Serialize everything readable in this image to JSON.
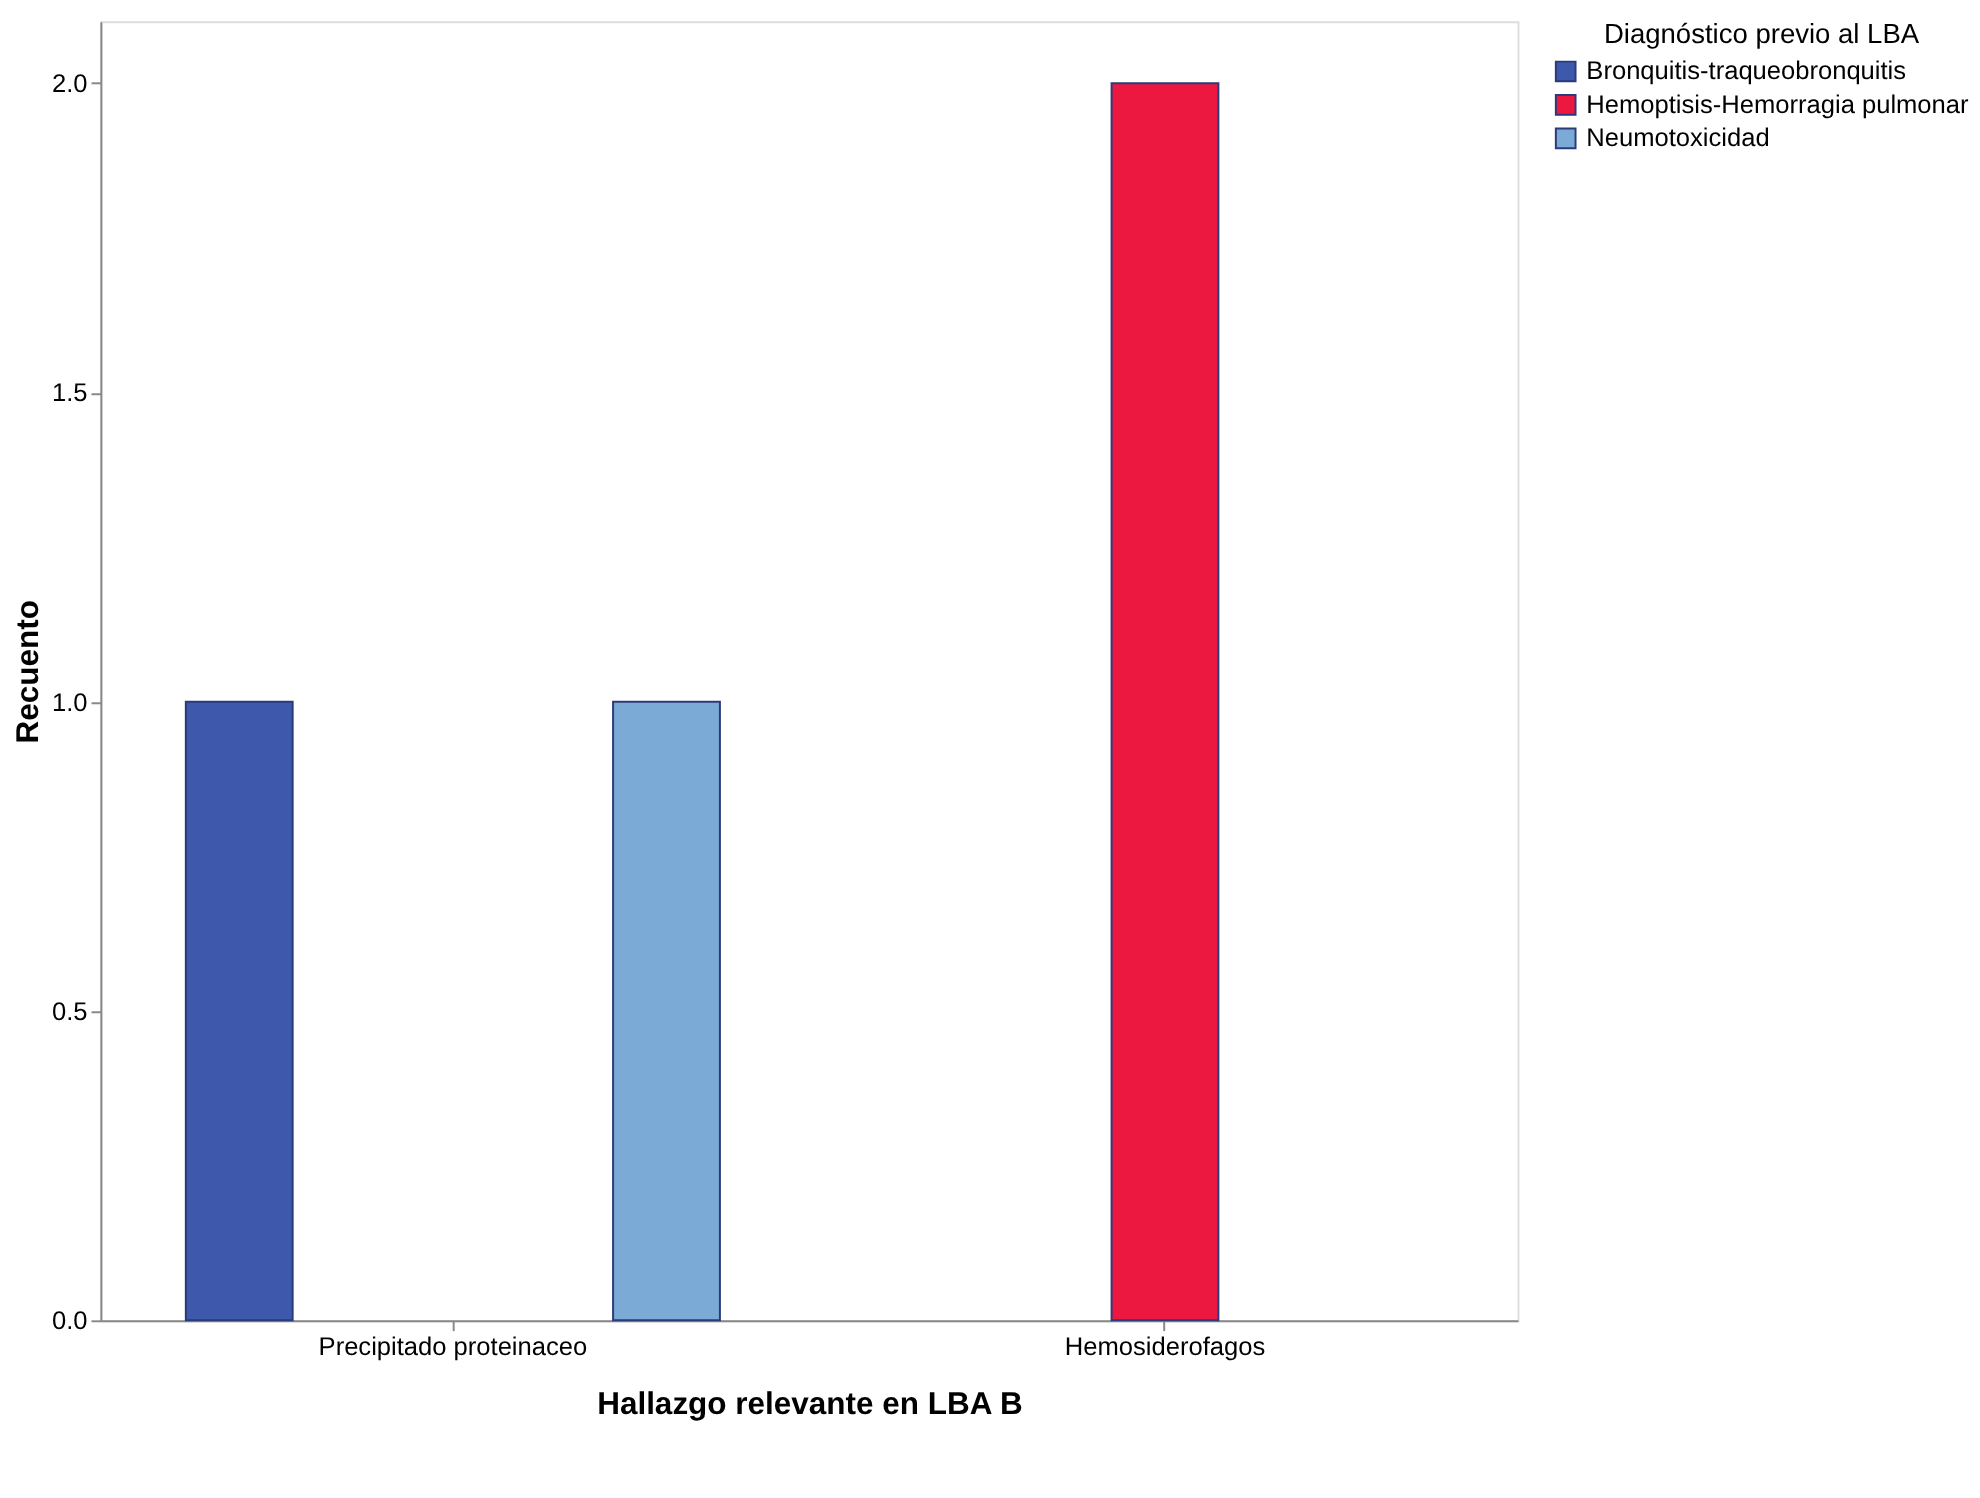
{
  "chart_data": {
    "type": "bar",
    "xlabel": "Hallazgo relevante en LBA B",
    "ylabel": "Recuento",
    "legend_title": "Diagnóstico previo al LBA",
    "categories": [
      "Precipitado proteinaceo",
      "Hemosiderofagos"
    ],
    "series": [
      {
        "name": "Bronquitis-traqueobronquitis",
        "color": "#3e58ac",
        "values": [
          1,
          null
        ]
      },
      {
        "name": "Hemoptisis-Hemorragia pulmonar",
        "color": "#ec1840",
        "values": [
          null,
          2
        ]
      },
      {
        "name": "Neumotoxicidad",
        "color": "#7caad6",
        "values": [
          1,
          null
        ]
      }
    ],
    "ylim": [
      0,
      2.1
    ],
    "yticks": [
      {
        "value": 0,
        "label": "0.0"
      },
      {
        "value": 0.5,
        "label": "0.5"
      },
      {
        "value": 1,
        "label": "1.0"
      },
      {
        "value": 1.5,
        "label": "1.5"
      },
      {
        "value": 2,
        "label": "2.0"
      }
    ],
    "grid": false,
    "legend": "right"
  }
}
